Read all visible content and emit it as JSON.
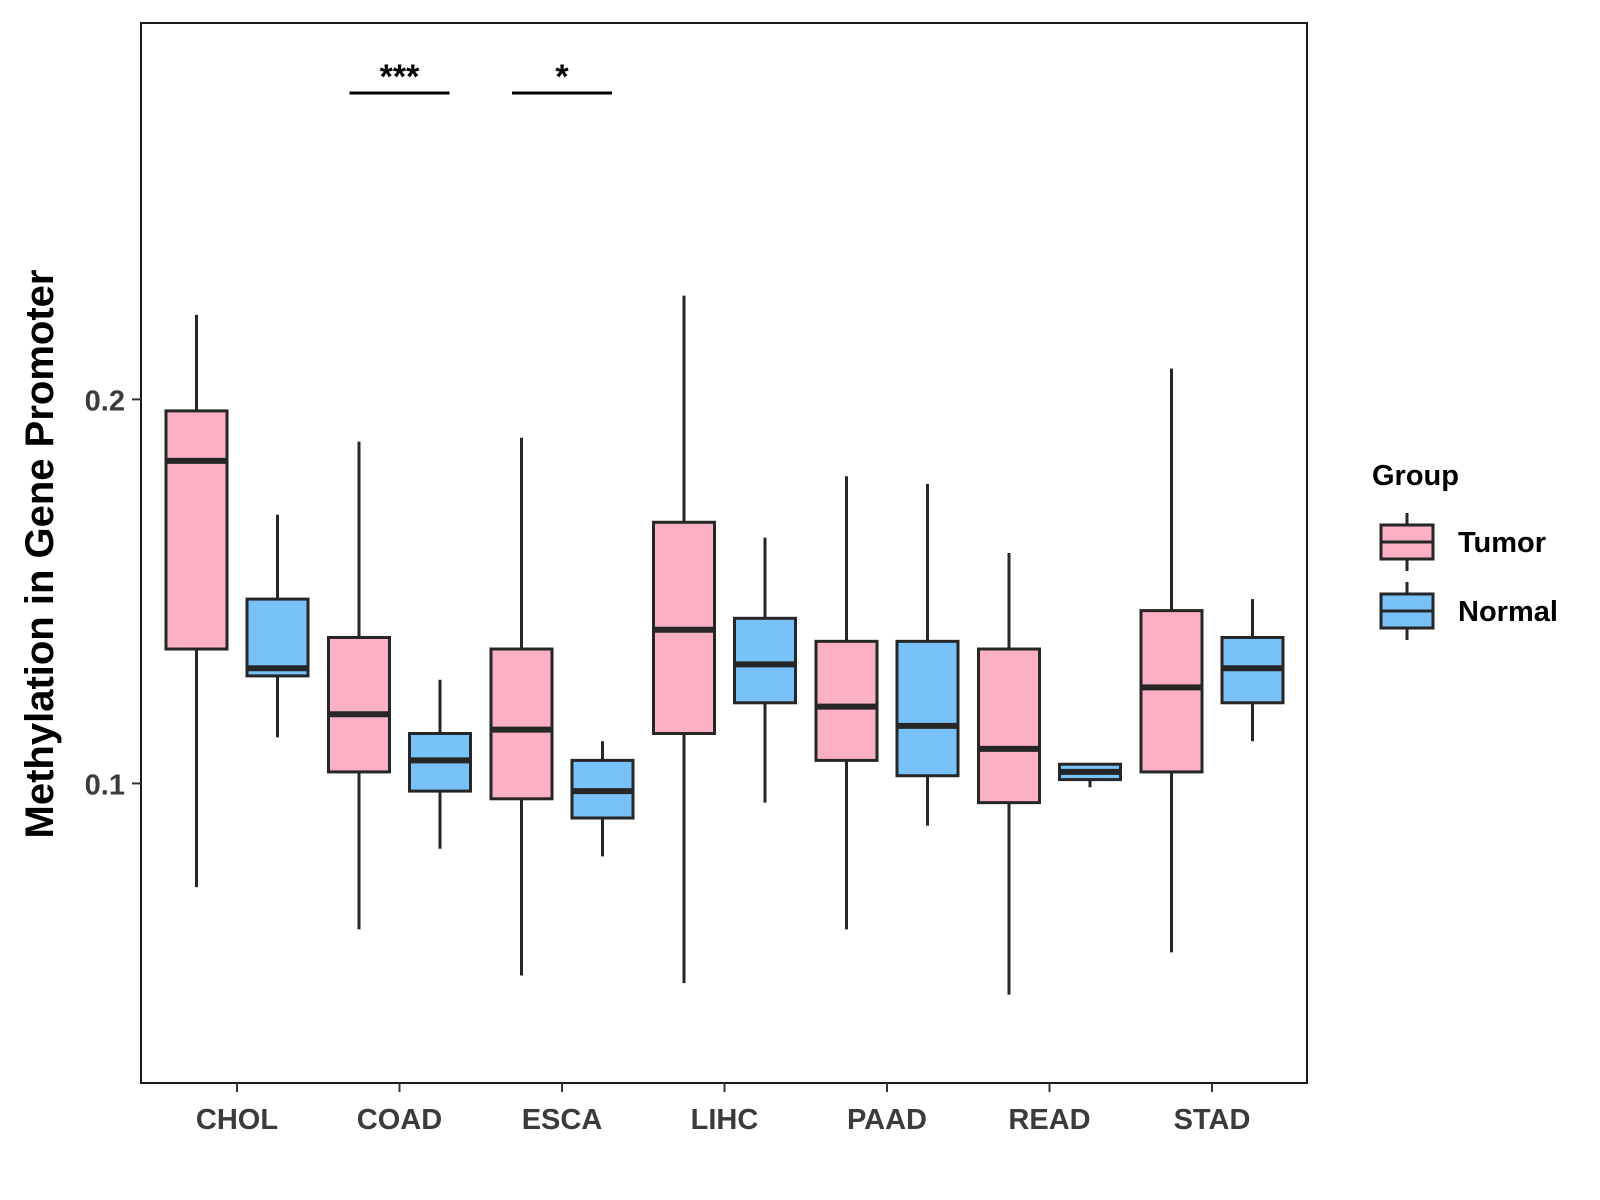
{
  "chart_data": {
    "type": "boxplot",
    "title": "",
    "xlabel": "",
    "ylabel": "Methylation in Gene Promoter",
    "ylim": [
      0.022,
      0.298
    ],
    "yticks": [
      0.1,
      0.2
    ],
    "ytick_labels": [
      "0.1",
      "0.2"
    ],
    "categories": [
      "CHOL",
      "COAD",
      "ESCA",
      "LIHC",
      "PAAD",
      "READ",
      "STAD"
    ],
    "legend": {
      "title": "Group",
      "position": "right",
      "entries": [
        "Tumor",
        "Normal"
      ]
    },
    "colors": {
      "Tumor": "#FBB1C3",
      "Normal": "#78C1F9",
      "outline": "#262626"
    },
    "series": [
      {
        "name": "Tumor",
        "boxes": [
          {
            "category": "CHOL",
            "whisker_low": 0.073,
            "q1": 0.135,
            "median": 0.184,
            "q3": 0.197,
            "whisker_high": 0.222
          },
          {
            "category": "COAD",
            "whisker_low": 0.062,
            "q1": 0.103,
            "median": 0.118,
            "q3": 0.138,
            "whisker_high": 0.189
          },
          {
            "category": "ESCA",
            "whisker_low": 0.05,
            "q1": 0.096,
            "median": 0.114,
            "q3": 0.135,
            "whisker_high": 0.19
          },
          {
            "category": "LIHC",
            "whisker_low": 0.048,
            "q1": 0.113,
            "median": 0.14,
            "q3": 0.168,
            "whisker_high": 0.227
          },
          {
            "category": "PAAD",
            "whisker_low": 0.062,
            "q1": 0.106,
            "median": 0.12,
            "q3": 0.137,
            "whisker_high": 0.18
          },
          {
            "category": "READ",
            "whisker_low": 0.045,
            "q1": 0.095,
            "median": 0.109,
            "q3": 0.135,
            "whisker_high": 0.16
          },
          {
            "category": "STAD",
            "whisker_low": 0.056,
            "q1": 0.103,
            "median": 0.125,
            "q3": 0.145,
            "whisker_high": 0.208
          }
        ]
      },
      {
        "name": "Normal",
        "boxes": [
          {
            "category": "CHOL",
            "whisker_low": 0.112,
            "q1": 0.128,
            "median": 0.13,
            "q3": 0.148,
            "whisker_high": 0.17
          },
          {
            "category": "COAD",
            "whisker_low": 0.083,
            "q1": 0.098,
            "median": 0.106,
            "q3": 0.113,
            "whisker_high": 0.127
          },
          {
            "category": "ESCA",
            "whisker_low": 0.081,
            "q1": 0.091,
            "median": 0.098,
            "q3": 0.106,
            "whisker_high": 0.111
          },
          {
            "category": "LIHC",
            "whisker_low": 0.095,
            "q1": 0.121,
            "median": 0.131,
            "q3": 0.143,
            "whisker_high": 0.164
          },
          {
            "category": "PAAD",
            "whisker_low": 0.089,
            "q1": 0.102,
            "median": 0.115,
            "q3": 0.137,
            "whisker_high": 0.178
          },
          {
            "category": "READ",
            "whisker_low": 0.099,
            "q1": 0.101,
            "median": 0.103,
            "q3": 0.105,
            "whisker_high": 0.105
          },
          {
            "category": "STAD",
            "whisker_low": 0.111,
            "q1": 0.121,
            "median": 0.13,
            "q3": 0.138,
            "whisker_high": 0.148
          }
        ]
      }
    ],
    "annotations": [
      {
        "category": "COAD",
        "label": "***"
      },
      {
        "category": "ESCA",
        "label": "*"
      }
    ]
  }
}
